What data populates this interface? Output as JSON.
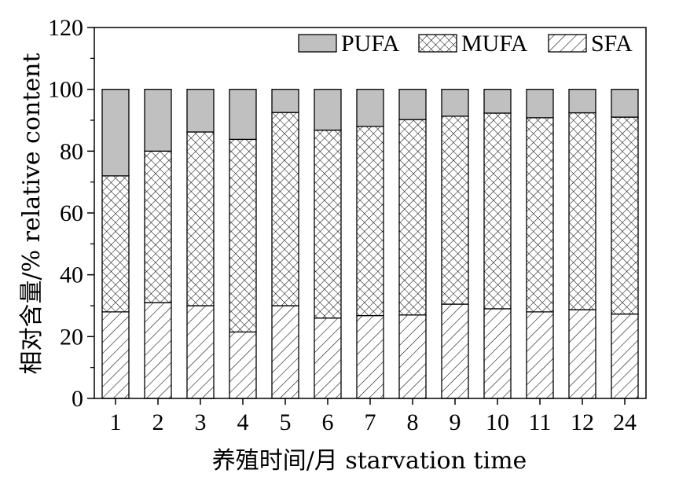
{
  "chart_data": {
    "type": "bar",
    "stacked": true,
    "categories": [
      "1",
      "2",
      "3",
      "4",
      "5",
      "6",
      "7",
      "8",
      "9",
      "10",
      "11",
      "12",
      "24"
    ],
    "series": [
      {
        "name": "SFA",
        "pattern": "diagonal-hatch",
        "values": [
          28.0,
          31.0,
          30.0,
          21.5,
          30.0,
          26.0,
          26.8,
          27.0,
          30.5,
          29.0,
          28.0,
          28.7,
          27.3
        ]
      },
      {
        "name": "MUFA",
        "pattern": "crosshatch",
        "values": [
          44.0,
          49.0,
          56.2,
          62.3,
          62.5,
          60.8,
          61.2,
          63.2,
          60.8,
          63.3,
          62.8,
          63.7,
          63.7
        ]
      },
      {
        "name": "PUFA",
        "color": "#c0c0c0",
        "values": [
          28.0,
          20.0,
          13.8,
          16.2,
          7.5,
          13.2,
          12.0,
          9.8,
          8.7,
          7.7,
          9.2,
          7.6,
          9.0
        ]
      }
    ],
    "legend_order": [
      "PUFA",
      "MUFA",
      "SFA"
    ],
    "legend_position": "top-right",
    "xlabel": "养殖时间/月 starvation time",
    "ylabel": "相对含量/% relative content",
    "ylim": [
      0,
      120
    ],
    "yticks": [
      0,
      20,
      40,
      60,
      80,
      100,
      120
    ],
    "grid": false
  }
}
